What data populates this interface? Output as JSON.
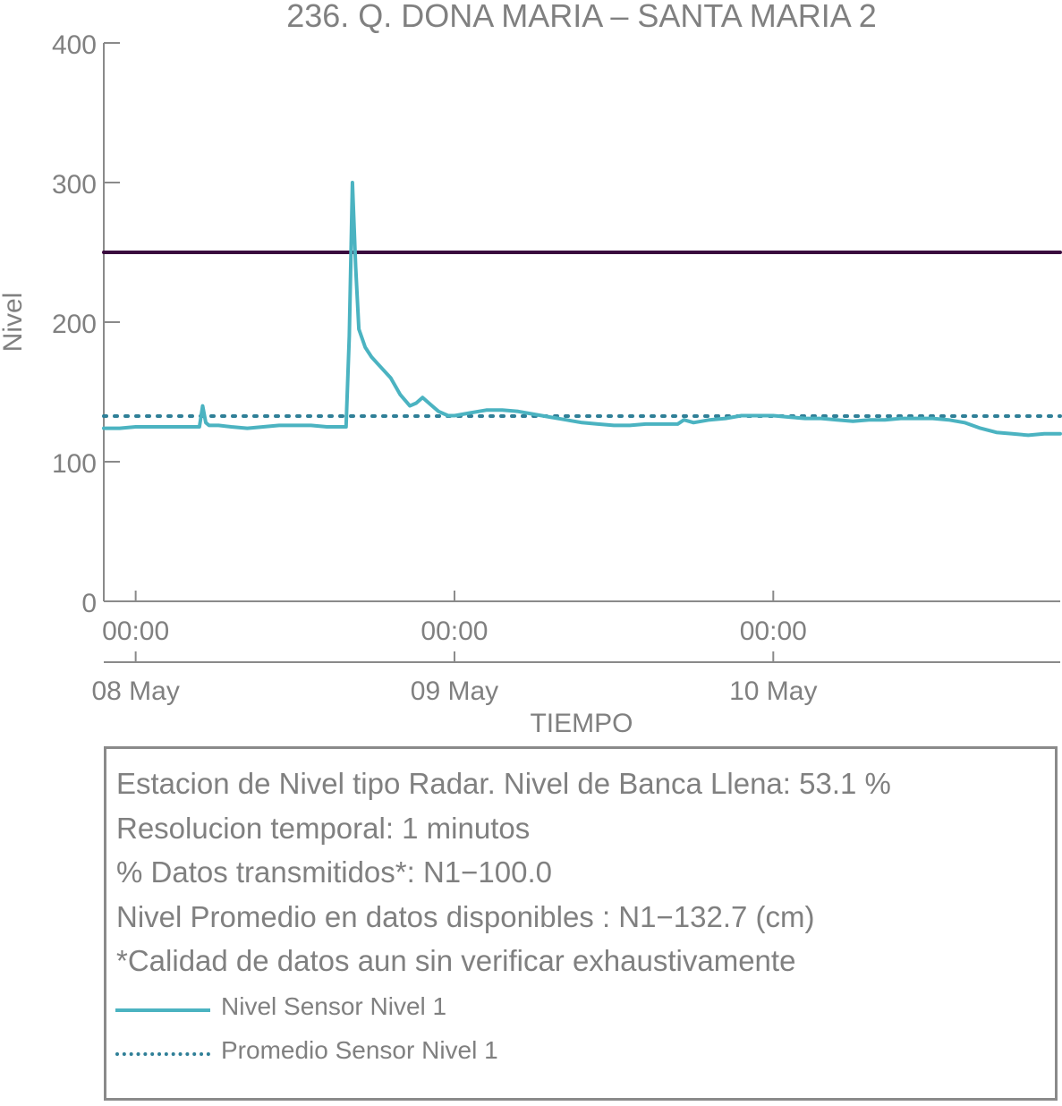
{
  "chart_data": {
    "type": "line",
    "title": "236. Q. DONA MARIA – SANTA MARIA 2",
    "xlabel": "TIEMPO",
    "ylabel": "Nivel",
    "ylim": [
      0,
      400
    ],
    "yticks": [
      0,
      100,
      200,
      300,
      400
    ],
    "xlim_days": [
      -0.1,
      2.9
    ],
    "xticks": [
      {
        "pos": 0,
        "time": "00:00",
        "date": "08 May"
      },
      {
        "pos": 1,
        "time": "00:00",
        "date": "09 May"
      },
      {
        "pos": 2,
        "time": "00:00",
        "date": "10 May"
      }
    ],
    "grid": false,
    "series": [
      {
        "name": "Nivel Sensor Nivel 1",
        "color": "#4bb3c1",
        "style": "solid",
        "x": [
          -0.1,
          -0.05,
          0.0,
          0.05,
          0.1,
          0.15,
          0.2,
          0.21,
          0.22,
          0.23,
          0.24,
          0.26,
          0.3,
          0.35,
          0.4,
          0.45,
          0.5,
          0.55,
          0.6,
          0.65,
          0.66,
          0.67,
          0.68,
          0.69,
          0.7,
          0.72,
          0.74,
          0.76,
          0.8,
          0.83,
          0.86,
          0.88,
          0.9,
          0.93,
          0.95,
          0.98,
          1.0,
          1.05,
          1.1,
          1.15,
          1.2,
          1.25,
          1.3,
          1.35,
          1.4,
          1.45,
          1.5,
          1.55,
          1.6,
          1.65,
          1.7,
          1.72,
          1.75,
          1.8,
          1.85,
          1.9,
          1.95,
          2.0,
          2.05,
          2.1,
          2.15,
          2.2,
          2.25,
          2.3,
          2.35,
          2.4,
          2.45,
          2.5,
          2.55,
          2.6,
          2.65,
          2.7,
          2.75,
          2.8,
          2.85,
          2.9
        ],
        "y": [
          124,
          124,
          125,
          125,
          125,
          125,
          125,
          140,
          128,
          126,
          126,
          126,
          125,
          124,
          125,
          126,
          126,
          126,
          125,
          125,
          125,
          190,
          300,
          240,
          195,
          182,
          175,
          170,
          160,
          148,
          140,
          142,
          146,
          140,
          136,
          133,
          133,
          135,
          137,
          137,
          136,
          134,
          132,
          130,
          128,
          127,
          126,
          126,
          127,
          127,
          127,
          130,
          128,
          130,
          131,
          133,
          133,
          133,
          132,
          131,
          131,
          130,
          129,
          130,
          130,
          131,
          131,
          131,
          130,
          128,
          124,
          121,
          120,
          119,
          120,
          120
        ]
      },
      {
        "name": "Promedio Sensor Nivel 1",
        "color": "#2f7f97",
        "style": "dotted",
        "x": [
          -0.1,
          2.9
        ],
        "y": [
          132.7,
          132.7
        ]
      },
      {
        "name": "",
        "color": "#3a0a3e",
        "style": "solid",
        "x": [
          -0.1,
          2.9
        ],
        "y": [
          250,
          250
        ]
      }
    ]
  },
  "info": {
    "line1": "Estacion de Nivel tipo Radar. Nivel de Banca Llena: 53.1 %",
    "line2": "Resolucion temporal: 1 minutos",
    "line3": "% Datos transmitidos*: N1−100.0",
    "line4": "Nivel Promedio en datos disponibles : N1−132.7 (cm)",
    "line5": "*Calidad de datos aun sin verificar exhaustivamente"
  },
  "legend": {
    "item1": "Nivel Sensor Nivel 1",
    "item2": "Promedio Sensor Nivel 1"
  }
}
